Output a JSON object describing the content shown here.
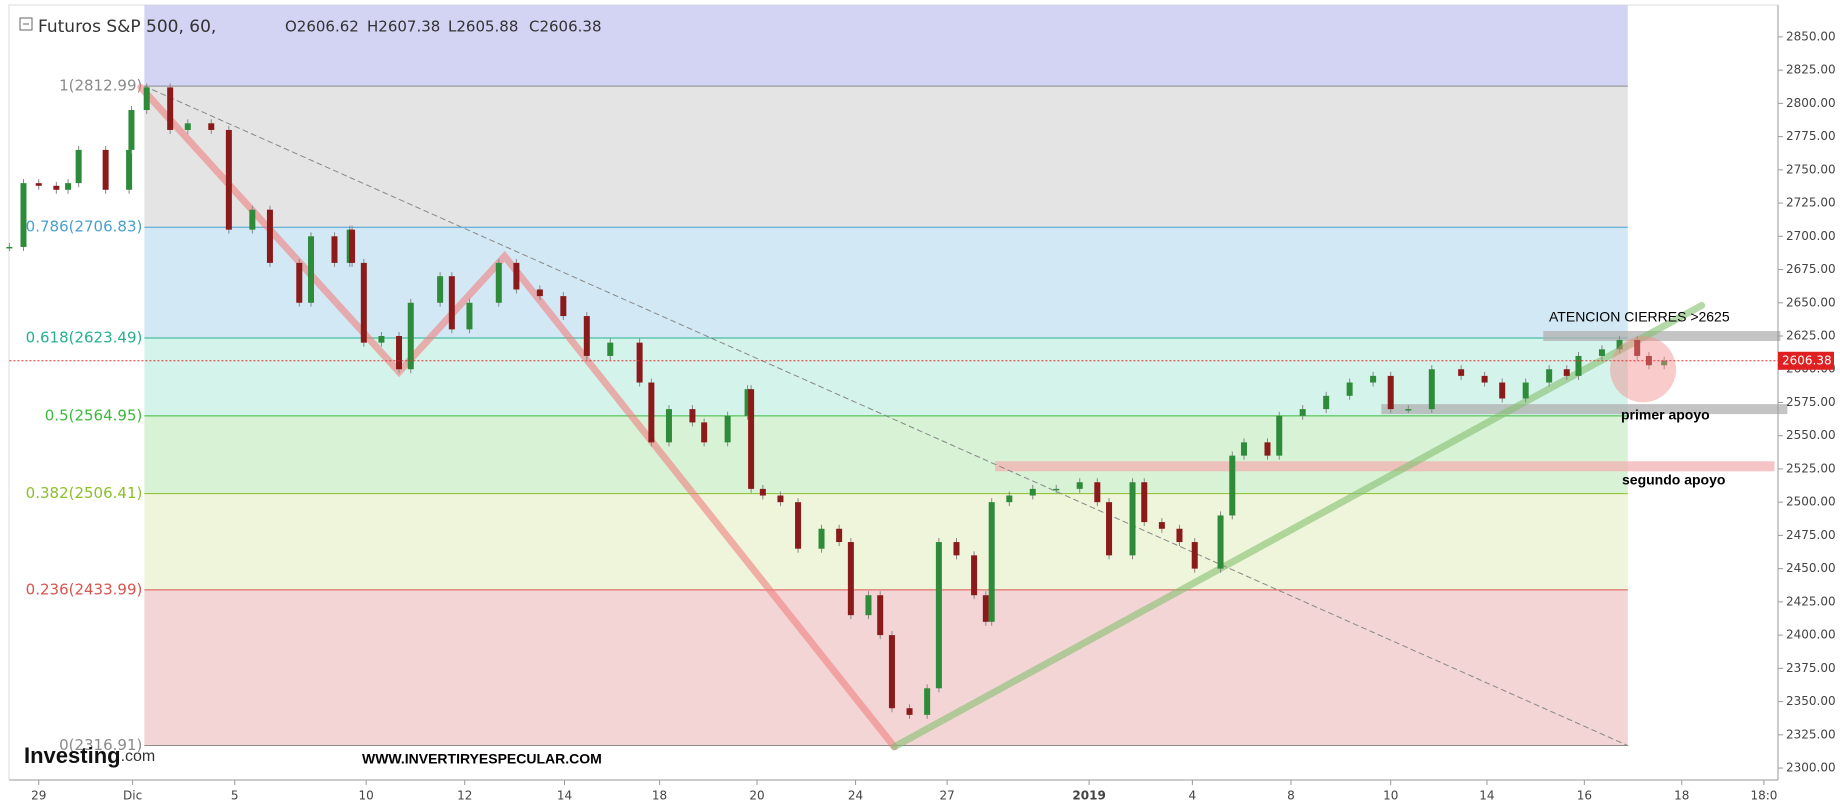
{
  "chart_data": {
    "type": "candlestick",
    "header": {
      "symbol": "Futuros S&P 500, 60,",
      "open": "O2606.62",
      "high": "H2607.38",
      "low": "L2605.88",
      "close": "C2606.38"
    },
    "last_price": 2606.38,
    "xlim": [
      0,
      301.4
    ],
    "ylim": [
      2291,
      2874
    ],
    "xticks": [
      {
        "value": 5,
        "label": "29"
      },
      {
        "value": 21,
        "label": "Dic"
      },
      {
        "value": 38.4,
        "label": "5"
      },
      {
        "value": 60.8,
        "label": "10"
      },
      {
        "value": 77.6,
        "label": "12"
      },
      {
        "value": 94.6,
        "label": "14"
      },
      {
        "value": 110.8,
        "label": "18"
      },
      {
        "value": 127.4,
        "label": "20"
      },
      {
        "value": 144.2,
        "label": "24"
      },
      {
        "value": 159.8,
        "label": "27"
      },
      {
        "value": 184,
        "label": "2019"
      },
      {
        "value": 201.6,
        "label": "4"
      },
      {
        "value": 218.4,
        "label": "8"
      },
      {
        "value": 235.4,
        "label": "10"
      },
      {
        "value": 251.8,
        "label": "14"
      },
      {
        "value": 268.4,
        "label": "16"
      },
      {
        "value": 285,
        "label": "18"
      },
      {
        "value": 299,
        "label": "18:0"
      }
    ],
    "yticks": [
      {
        "value": 2300,
        "label": "2300.00"
      },
      {
        "value": 2325,
        "label": "2325.00"
      },
      {
        "value": 2350,
        "label": "2350.00"
      },
      {
        "value": 2375,
        "label": "2375.00"
      },
      {
        "value": 2400,
        "label": "2400.00"
      },
      {
        "value": 2425,
        "label": "2425.00"
      },
      {
        "value": 2450,
        "label": "2450.00"
      },
      {
        "value": 2475,
        "label": "2475.00"
      },
      {
        "value": 2500,
        "label": "2500.00"
      },
      {
        "value": 2525,
        "label": "2525.00"
      },
      {
        "value": 2550,
        "label": "2550.00"
      },
      {
        "value": 2575,
        "label": "2575.00"
      },
      {
        "value": 2600,
        "label": "2600.00"
      },
      {
        "value": 2625,
        "label": "2625.00"
      },
      {
        "value": 2650,
        "label": "2650.00"
      },
      {
        "value": 2675,
        "label": "2675.00"
      },
      {
        "value": 2700,
        "label": "2700.00"
      },
      {
        "value": 2725,
        "label": "2725.00"
      },
      {
        "value": 2750,
        "label": "2750.00"
      },
      {
        "value": 2775,
        "label": "2775.00"
      },
      {
        "value": 2800,
        "label": "2800.00"
      },
      {
        "value": 2825,
        "label": "2825.00"
      },
      {
        "value": 2850,
        "label": "2850.00"
      }
    ],
    "series": [
      {
        "name": "Futuros S&P 500",
        "up_color": "#2e8b3a",
        "down_color": "#8b1a1a",
        "x": [
          0,
          2.4,
          5,
          8,
          10,
          11.8,
          16.4,
          20.4,
          20.8,
          23.4,
          27.4,
          30.4,
          34.4,
          37.4,
          41.4,
          44.4,
          49.4,
          51.4,
          55.4,
          58,
          58.4,
          60.4,
          63.4,
          66.4,
          68.4,
          73.4,
          75.4,
          78.4,
          83.4,
          86.4,
          90.4,
          94.4,
          98.4,
          102.4,
          107.4,
          109.4,
          112.4,
          116.4,
          118.4,
          122.4,
          125.8,
          126.4,
          128.4,
          131.4,
          134.4,
          138.4,
          141.4,
          143.4,
          146.4,
          148.4,
          150.4,
          153.4,
          156.4,
          158.4,
          161.4,
          164.4,
          166.4,
          167.4,
          170.4,
          174.4,
          178.4,
          182.4,
          185.4,
          187.4,
          191.4,
          193.4,
          196.4,
          199.4,
          202,
          206.4,
          208.4,
          210.4,
          214.4,
          216.4,
          220.4,
          224.4,
          228.4,
          232.4,
          235.4,
          238.4,
          242.4,
          247.4,
          251.4,
          254.4,
          258.4,
          262.4,
          265.4,
          267.4,
          271.4,
          274.4,
          277.4,
          279.4,
          282
        ],
        "values": [
          2692,
          2740,
          2738,
          2735,
          2740,
          2765,
          2735,
          2765,
          2795,
          2812,
          2780,
          2785,
          2780,
          2705,
          2720,
          2680,
          2650,
          2700,
          2680,
          2705,
          2680,
          2620,
          2625,
          2600,
          2650,
          2670,
          2630,
          2650,
          2680,
          2660,
          2655,
          2640,
          2610,
          2620,
          2590,
          2545,
          2570,
          2560,
          2545,
          2565,
          2585,
          2510,
          2505,
          2500,
          2465,
          2480,
          2470,
          2415,
          2430,
          2400,
          2345,
          2340,
          2360,
          2470,
          2460,
          2430,
          2410,
          2500,
          2505,
          2510,
          2510,
          2515,
          2500,
          2460,
          2515,
          2485,
          2480,
          2470,
          2450,
          2490,
          2535,
          2545,
          2535,
          2565,
          2570,
          2580,
          2590,
          2595,
          2570,
          2570,
          2600,
          2595,
          2590,
          2578,
          2590,
          2600,
          2595,
          2610,
          2615,
          2622,
          2610,
          2603,
          2606.38
        ]
      }
    ],
    "fib_start": 23,
    "fib_end": 275.8,
    "fib_top_fill": "#d3d3f4",
    "fib_levels": [
      {
        "label": "1(2812.99)",
        "value": 2812.99,
        "color": "#8a8a8a",
        "fill": "#e4e4e4"
      },
      {
        "label": "0.786(2706.83)",
        "value": 2706.83,
        "color": "#4aa0cf",
        "fill": "#d2e8f4"
      },
      {
        "label": "0.618(2623.49)",
        "value": 2623.49,
        "color": "#26b090",
        "fill": "#d4f3ea"
      },
      {
        "label": "0.5(2564.95)",
        "value": 2564.95,
        "color": "#3cb83c",
        "fill": "#d7f2d5"
      },
      {
        "label": "0.382(2506.41)",
        "value": 2506.41,
        "color": "#8dbf2a",
        "fill": "#eef5da"
      },
      {
        "label": "0.236(2433.99)",
        "value": 2433.99,
        "color": "#d9534f",
        "fill": "#f3d5d5"
      },
      {
        "label": "0(2316.91)",
        "value": 2316.91,
        "color": "#8a8a8a",
        "fill": "#f3d5d5"
      }
    ],
    "trend_lines": [
      {
        "color": "#f08080",
        "x": [
          22.4,
          66.4,
          84.4,
          150.8
        ],
        "y": [
          2812,
          2598,
          2685,
          2316
        ]
      },
      {
        "color": "#86c070",
        "x": [
          150.8,
          288.4
        ],
        "y": [
          2316,
          2648
        ]
      },
      {
        "color": "#888888",
        "dashed": true,
        "x": [
          23,
          275.8
        ],
        "y": [
          2812.99,
          2316.91
        ]
      }
    ],
    "zones": [
      {
        "color": "#b0b0b0",
        "price": 2625,
        "x": [
          261.4,
          301.8
        ]
      },
      {
        "color": "#b0b0b0",
        "price": 2570,
        "x": [
          233.8,
          303
        ]
      },
      {
        "color": "#f2b0b0",
        "price": 2527,
        "x": [
          168,
          300.8
        ]
      }
    ],
    "highlight": {
      "x": 278.4,
      "price": 2600,
      "color": "#f28b8b"
    },
    "annotations": [
      "ATENCION CIERRES >2625",
      "primer apoyo",
      "segundo apoyo",
      "WWW.INVERTIRYESPECULAR.COM"
    ],
    "logo": [
      "Investing",
      ".com"
    ]
  }
}
